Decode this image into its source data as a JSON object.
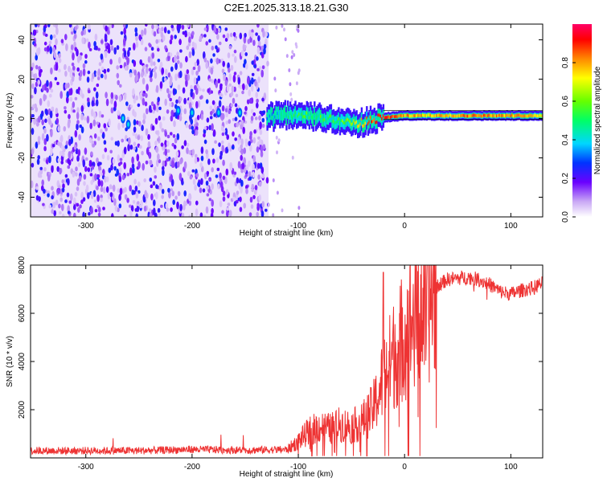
{
  "title": "C2E1.2025.313.18.21.G30",
  "chart_data": [
    {
      "type": "heatmap",
      "xlabel": "Height of straight line (km)",
      "ylabel": "Frequency (Hz)",
      "xlim": [
        -352,
        130
      ],
      "ylim": [
        -50,
        48
      ],
      "xticks": [
        -300,
        -200,
        -100,
        0,
        100
      ],
      "yticks": [
        -40,
        -20,
        0,
        20,
        40
      ],
      "colorbar": {
        "label": "Normalized spectral amplitude",
        "range": [
          0,
          1
        ],
        "ticks": [
          "0.0",
          "0.2",
          "0.4",
          "0.6",
          "0.8"
        ],
        "tick_values": [
          0.0,
          0.2,
          0.4,
          0.6,
          0.8
        ]
      },
      "noise_region_km": [
        -352,
        -128
      ],
      "signal_track": {
        "heights_km": [
          -130,
          -110,
          -90,
          -70,
          -55,
          -45,
          -35,
          -20,
          -10,
          0,
          20,
          50,
          75,
          90,
          130
        ],
        "center_freq_hz": [
          0.5,
          2,
          1,
          0,
          -2,
          -3,
          -1,
          0.5,
          1,
          1.5,
          1.5,
          1.5,
          1.5,
          1.5,
          1.5
        ],
        "amplitude": [
          0.35,
          0.45,
          0.55,
          0.5,
          0.6,
          0.7,
          0.85,
          0.9,
          0.85,
          0.8,
          0.75,
          0.8,
          0.85,
          0.8,
          0.75
        ]
      }
    },
    {
      "type": "line",
      "xlabel": "Height of straight line (km)",
      "ylabel": "SNR (10 * v/v)",
      "xlim": [
        -352,
        130
      ],
      "ylim": [
        0,
        8000
      ],
      "xticks": [
        -300,
        -200,
        -100,
        0,
        100
      ],
      "yticks": [
        2000,
        4000,
        6000,
        8000
      ],
      "series": [
        {
          "name": "SNR",
          "color": "#ee3333",
          "x": [
            -352,
            -250,
            -200,
            -150,
            -110,
            -100,
            -90,
            -80,
            -70,
            -60,
            -50,
            -40,
            -30,
            -25,
            -20,
            -15,
            -10,
            -5,
            0,
            5,
            10,
            20,
            30,
            40,
            50,
            60,
            70,
            80,
            90,
            100,
            110,
            120,
            130
          ],
          "y": [
            300,
            300,
            350,
            320,
            350,
            700,
            1100,
            1300,
            1200,
            1400,
            1300,
            1500,
            2000,
            2600,
            3300,
            3800,
            4300,
            4700,
            5200,
            5500,
            5800,
            6500,
            7100,
            7400,
            7450,
            7500,
            7400,
            7200,
            6900,
            6800,
            6950,
            7050,
            7250
          ]
        }
      ]
    }
  ]
}
